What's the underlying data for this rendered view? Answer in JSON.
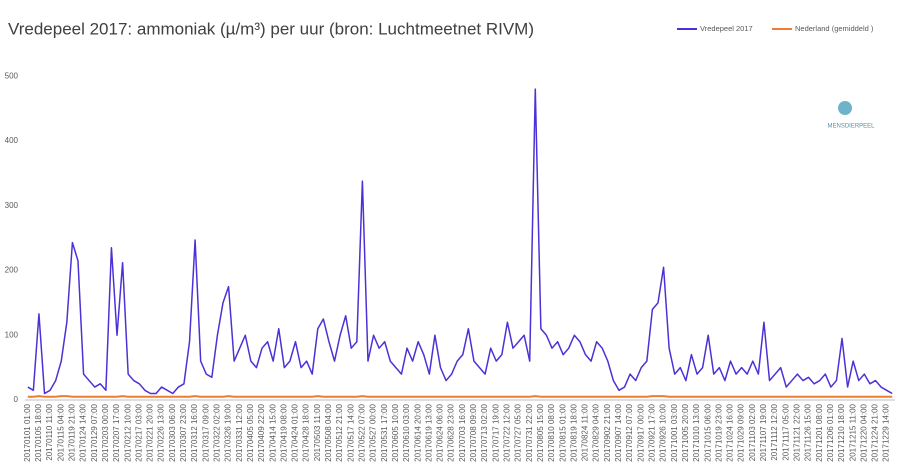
{
  "chart_data": {
    "type": "line",
    "title": "Vredepeel 2017: ammoniak (µ/m³) per uur (bron: Luchtmeetnet RIVM)",
    "logo": "MENSDIERPEEL",
    "categories": [
      "20170101 01:00",
      null,
      "20170105 18:00",
      null,
      "20170110 11:00",
      null,
      "20170115 04:00",
      null,
      "20170119 21:00",
      null,
      "20170124 14:00",
      null,
      "20170129 07:00",
      null,
      "20170203 00:00",
      null,
      "20170207 17:00",
      null,
      "20170212 10:00",
      null,
      "20170217 03:00",
      null,
      "20170221 20:00",
      null,
      "20170226 13:00",
      null,
      "20170303 06:00",
      null,
      "20170307 23:00",
      null,
      "20170312 16:00",
      null,
      "20170317 09:00",
      null,
      "20170322 02:00",
      null,
      "20170326 19:00",
      null,
      "20170331 12:00",
      null,
      "20170405 05:00",
      null,
      "20170409 22:00",
      null,
      "20170414 15:00",
      null,
      "20170419 08:00",
      null,
      "20170424 01:00",
      null,
      "20170428 18:00",
      null,
      "20170503 11:00",
      null,
      "20170508 04:00",
      null,
      "20170512 21:00",
      null,
      "20170517 14:00",
      null,
      "20170522 07:00",
      null,
      "20170527 00:00",
      null,
      "20170531 17:00",
      null,
      "20170605 10:00",
      null,
      "20170610 03:00",
      null,
      "20170614 20:00",
      null,
      "20170619 13:00",
      null,
      "20170624 06:00",
      null,
      "20170628 23:00",
      null,
      "20170703 16:00",
      null,
      "20170708 09:00",
      null,
      "20170713 02:00",
      null,
      "20170717 19:00",
      null,
      "20170722 12:00",
      null,
      "20170727 05:00",
      null,
      "20170731 22:00",
      null,
      "20170805 15:00",
      null,
      "20170810 08:00",
      null,
      "20170815 01:00",
      null,
      "20170819 18:00",
      null,
      "20170824 11:00",
      null,
      "20170829 04:00",
      null,
      "20170902 21:00",
      null,
      "20170907 14:00",
      null,
      "20170912 07:00",
      null,
      "20170917 00:00",
      null,
      "20170921 17:00",
      null,
      "20170926 10:00",
      null,
      "20171001 03:00",
      null,
      "20171005 20:00",
      null,
      "20171010 13:00",
      null,
      "20171015 06:00",
      null,
      "20171019 23:00",
      null,
      "20171024 16:00",
      null,
      "20171029 09:00",
      null,
      "20171103 02:00",
      null,
      "20171107 19:00",
      null,
      "20171112 12:00",
      null,
      "20171117 05:00",
      null,
      "20171121 22:00",
      null,
      "20171126 15:00",
      null,
      "20171201 08:00",
      null,
      "20171206 01:00",
      null,
      "20171210 18:00",
      null,
      "20171215 11:00",
      null,
      "20171220 04:00",
      null,
      "20171224 21:00",
      null,
      "20171229 14:00",
      null
    ],
    "series": [
      {
        "name": "Vredepeel 2017",
        "color": "#4b32d6",
        "values": [
          20,
          15,
          133,
          10,
          15,
          30,
          60,
          120,
          243,
          215,
          40,
          30,
          20,
          25,
          15,
          235,
          100,
          212,
          40,
          30,
          25,
          15,
          10,
          10,
          20,
          15,
          10,
          20,
          25,
          90,
          247,
          60,
          40,
          35,
          100,
          150,
          175,
          60,
          80,
          100,
          60,
          50,
          80,
          90,
          60,
          110,
          50,
          60,
          90,
          50,
          60,
          40,
          110,
          125,
          90,
          60,
          100,
          130,
          80,
          90,
          338,
          60,
          100,
          80,
          90,
          60,
          50,
          40,
          80,
          60,
          90,
          70,
          40,
          100,
          50,
          30,
          40,
          60,
          70,
          110,
          60,
          50,
          40,
          80,
          60,
          70,
          120,
          80,
          90,
          100,
          60,
          480,
          110,
          100,
          80,
          90,
          70,
          80,
          100,
          90,
          70,
          60,
          90,
          80,
          60,
          30,
          15,
          20,
          40,
          30,
          50,
          60,
          140,
          150,
          205,
          80,
          40,
          50,
          30,
          70,
          40,
          50,
          100,
          40,
          50,
          30,
          60,
          40,
          50,
          40,
          60,
          40,
          120,
          30,
          40,
          50,
          20,
          30,
          40,
          30,
          35,
          25,
          30,
          40,
          20,
          30,
          95,
          20,
          60,
          30,
          40,
          25,
          30,
          20,
          15,
          10
        ]
      },
      {
        "name": "Nederland (gemiddeld )",
        "color": "#ed7d31",
        "values": [
          5,
          5,
          6,
          5,
          5,
          5,
          6,
          6,
          5,
          5,
          5,
          5,
          5,
          5,
          5,
          5,
          5,
          6,
          5,
          5,
          5,
          5,
          5,
          5,
          5,
          5,
          5,
          5,
          5,
          5,
          6,
          5,
          5,
          5,
          5,
          5,
          6,
          5,
          5,
          5,
          5,
          5,
          5,
          5,
          5,
          5,
          5,
          5,
          5,
          5,
          5,
          5,
          6,
          5,
          5,
          5,
          5,
          5,
          5,
          5,
          6,
          5,
          5,
          5,
          5,
          5,
          5,
          5,
          5,
          5,
          5,
          5,
          5,
          5,
          5,
          5,
          5,
          5,
          5,
          5,
          5,
          5,
          5,
          5,
          5,
          5,
          5,
          5,
          5,
          5,
          5,
          6,
          5,
          5,
          5,
          5,
          5,
          5,
          5,
          5,
          5,
          5,
          5,
          5,
          5,
          5,
          5,
          5,
          5,
          5,
          5,
          5,
          6,
          6,
          6,
          5,
          5,
          5,
          5,
          5,
          5,
          5,
          5,
          5,
          5,
          5,
          5,
          5,
          5,
          5,
          5,
          5,
          5,
          5,
          5,
          5,
          5,
          5,
          5,
          5,
          5,
          5,
          5,
          5,
          5,
          5,
          5,
          5,
          5,
          5,
          5,
          5,
          5,
          5,
          5,
          5
        ]
      }
    ],
    "ylim": [
      0,
      525
    ],
    "yticks": [
      0,
      100,
      200,
      300,
      400,
      500
    ],
    "grid": false,
    "legend": "top-right"
  }
}
